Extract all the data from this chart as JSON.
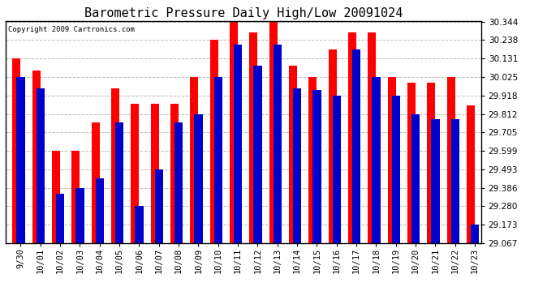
{
  "title": "Barometric Pressure Daily High/Low 20091024",
  "copyright": "Copyright 2009 Cartronics.com",
  "dates": [
    "9/30",
    "10/01",
    "10/02",
    "10/03",
    "10/04",
    "10/05",
    "10/06",
    "10/07",
    "10/08",
    "10/09",
    "10/10",
    "10/11",
    "10/12",
    "10/13",
    "10/14",
    "10/15",
    "10/16",
    "10/17",
    "10/18",
    "10/19",
    "10/20",
    "10/21",
    "10/22",
    "10/23"
  ],
  "high_values": [
    30.131,
    30.06,
    29.599,
    29.599,
    29.762,
    29.96,
    29.87,
    29.87,
    29.87,
    30.025,
    30.238,
    30.344,
    30.28,
    30.344,
    30.09,
    30.025,
    30.185,
    30.28,
    30.28,
    30.025,
    29.99,
    29.99,
    30.025,
    29.862
  ],
  "low_values": [
    30.025,
    29.96,
    29.35,
    29.386,
    29.44,
    29.762,
    29.28,
    29.493,
    29.762,
    29.812,
    30.025,
    30.21,
    30.09,
    30.21,
    29.96,
    29.95,
    29.918,
    30.185,
    30.025,
    29.918,
    29.812,
    29.78,
    29.78,
    29.173
  ],
  "high_color": "#ff0000",
  "low_color": "#0000cc",
  "bg_color": "#ffffff",
  "plot_bg_color": "#ffffff",
  "grid_color": "#bbbbbb",
  "ymin": 29.067,
  "ymax": 30.344,
  "yticks": [
    29.067,
    29.173,
    29.28,
    29.386,
    29.493,
    29.599,
    29.705,
    29.812,
    29.918,
    30.025,
    30.131,
    30.238,
    30.344
  ],
  "title_fontsize": 11,
  "tick_fontsize": 7.5,
  "copyright_fontsize": 6.5
}
